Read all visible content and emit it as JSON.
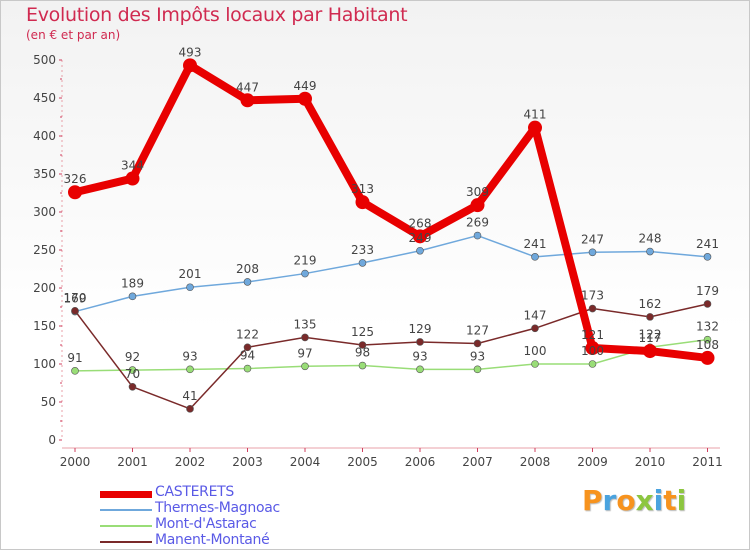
{
  "header": {
    "title": "Evolution des Impôts locaux par Habitant",
    "subtitle": "(en € et par an)"
  },
  "brand": {
    "letters": [
      "P",
      "r",
      "o",
      "x",
      "i",
      "t",
      "i"
    ],
    "colors": [
      "#f7931e",
      "#4aa3df",
      "#f7931e",
      "#8cc63f",
      "#4aa3df",
      "#f7931e",
      "#8cc63f"
    ]
  },
  "chart_data": {
    "type": "line",
    "title": "Evolution des Impôts locaux par Habitant",
    "subtitle": "(en € et par an)",
    "xlabel": "",
    "ylabel": "",
    "ylim": [
      0,
      500
    ],
    "yticks": [
      0,
      50,
      100,
      150,
      200,
      250,
      300,
      350,
      400,
      450,
      500
    ],
    "categories": [
      "2000",
      "2001",
      "2002",
      "2003",
      "2004",
      "2005",
      "2006",
      "2007",
      "2008",
      "2009",
      "2010",
      "2011"
    ],
    "grid": false,
    "legend_position": "bottom-left",
    "series": [
      {
        "name": "CASTERETS",
        "color": "#e80000",
        "values": [
          326,
          344,
          493,
          447,
          449,
          313,
          268,
          309,
          411,
          121,
          117,
          108
        ],
        "labels": [
          "326",
          "344",
          "493",
          "447",
          "449",
          "313",
          "268",
          "309",
          "411",
          "121",
          "117",
          "108"
        ]
      },
      {
        "name": "Thermes-Magnoac",
        "color": "#6fa8dc",
        "values": [
          169,
          189,
          201,
          208,
          219,
          233,
          249,
          269,
          241,
          247,
          248,
          241
        ],
        "labels": [
          "169",
          "189",
          "201",
          "208",
          "219",
          "233",
          "249",
          "269",
          "241",
          "247",
          "248",
          "241"
        ]
      },
      {
        "name": "Mont-d'Astarac",
        "color": "#99dd77",
        "values": [
          91,
          92,
          93,
          94,
          97,
          98,
          93,
          93,
          100,
          100,
          122,
          132
        ],
        "labels": [
          "91",
          "92",
          "93",
          "94",
          "97",
          "98",
          "93",
          "93",
          "100",
          "100",
          "122",
          "132"
        ]
      },
      {
        "name": "Manent-Montané",
        "color": "#7a2a2a",
        "values": [
          170,
          70,
          41,
          122,
          135,
          125,
          129,
          127,
          147,
          173,
          162,
          179
        ],
        "labels": [
          "170",
          "70",
          "41",
          "122",
          "135",
          "125",
          "129",
          "127",
          "147",
          "173",
          "162",
          "179"
        ]
      }
    ]
  }
}
